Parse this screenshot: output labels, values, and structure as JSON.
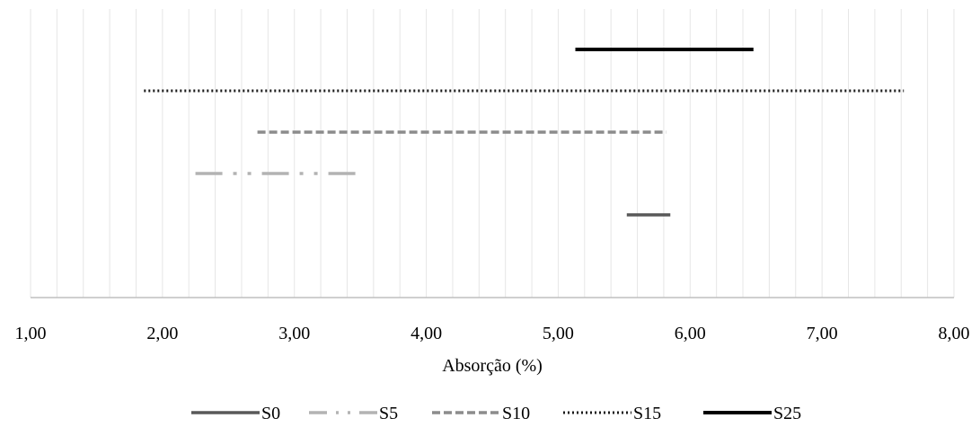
{
  "chart_data": {
    "type": "line",
    "title": "",
    "xlabel": "Absorção (%)",
    "ylabel": "",
    "xlim": [
      1.0,
      8.0
    ],
    "x_ticks": [
      "1,00",
      "2,00",
      "3,00",
      "4,00",
      "5,00",
      "6,00",
      "7,00",
      "8,00"
    ],
    "grid": "vertical minor gridlines every 0.2",
    "legend_position": "bottom",
    "series": [
      {
        "name": "S0",
        "x_range": [
          5.52,
          5.85
        ],
        "color": "#595959",
        "line_style": "solid"
      },
      {
        "name": "S5",
        "x_range": [
          2.25,
          3.5
        ],
        "color": "#b3b3b3",
        "line_style": "dash-dot-dot"
      },
      {
        "name": "S10",
        "x_range": [
          2.72,
          5.82
        ],
        "color": "#8c8c8c",
        "line_style": "dashed"
      },
      {
        "name": "S15",
        "x_range": [
          1.86,
          7.62
        ],
        "color": "#1a1a1a",
        "line_style": "dotted"
      },
      {
        "name": "S25",
        "x_range": [
          5.13,
          6.48
        ],
        "color": "#000000",
        "line_style": "solid"
      }
    ]
  }
}
